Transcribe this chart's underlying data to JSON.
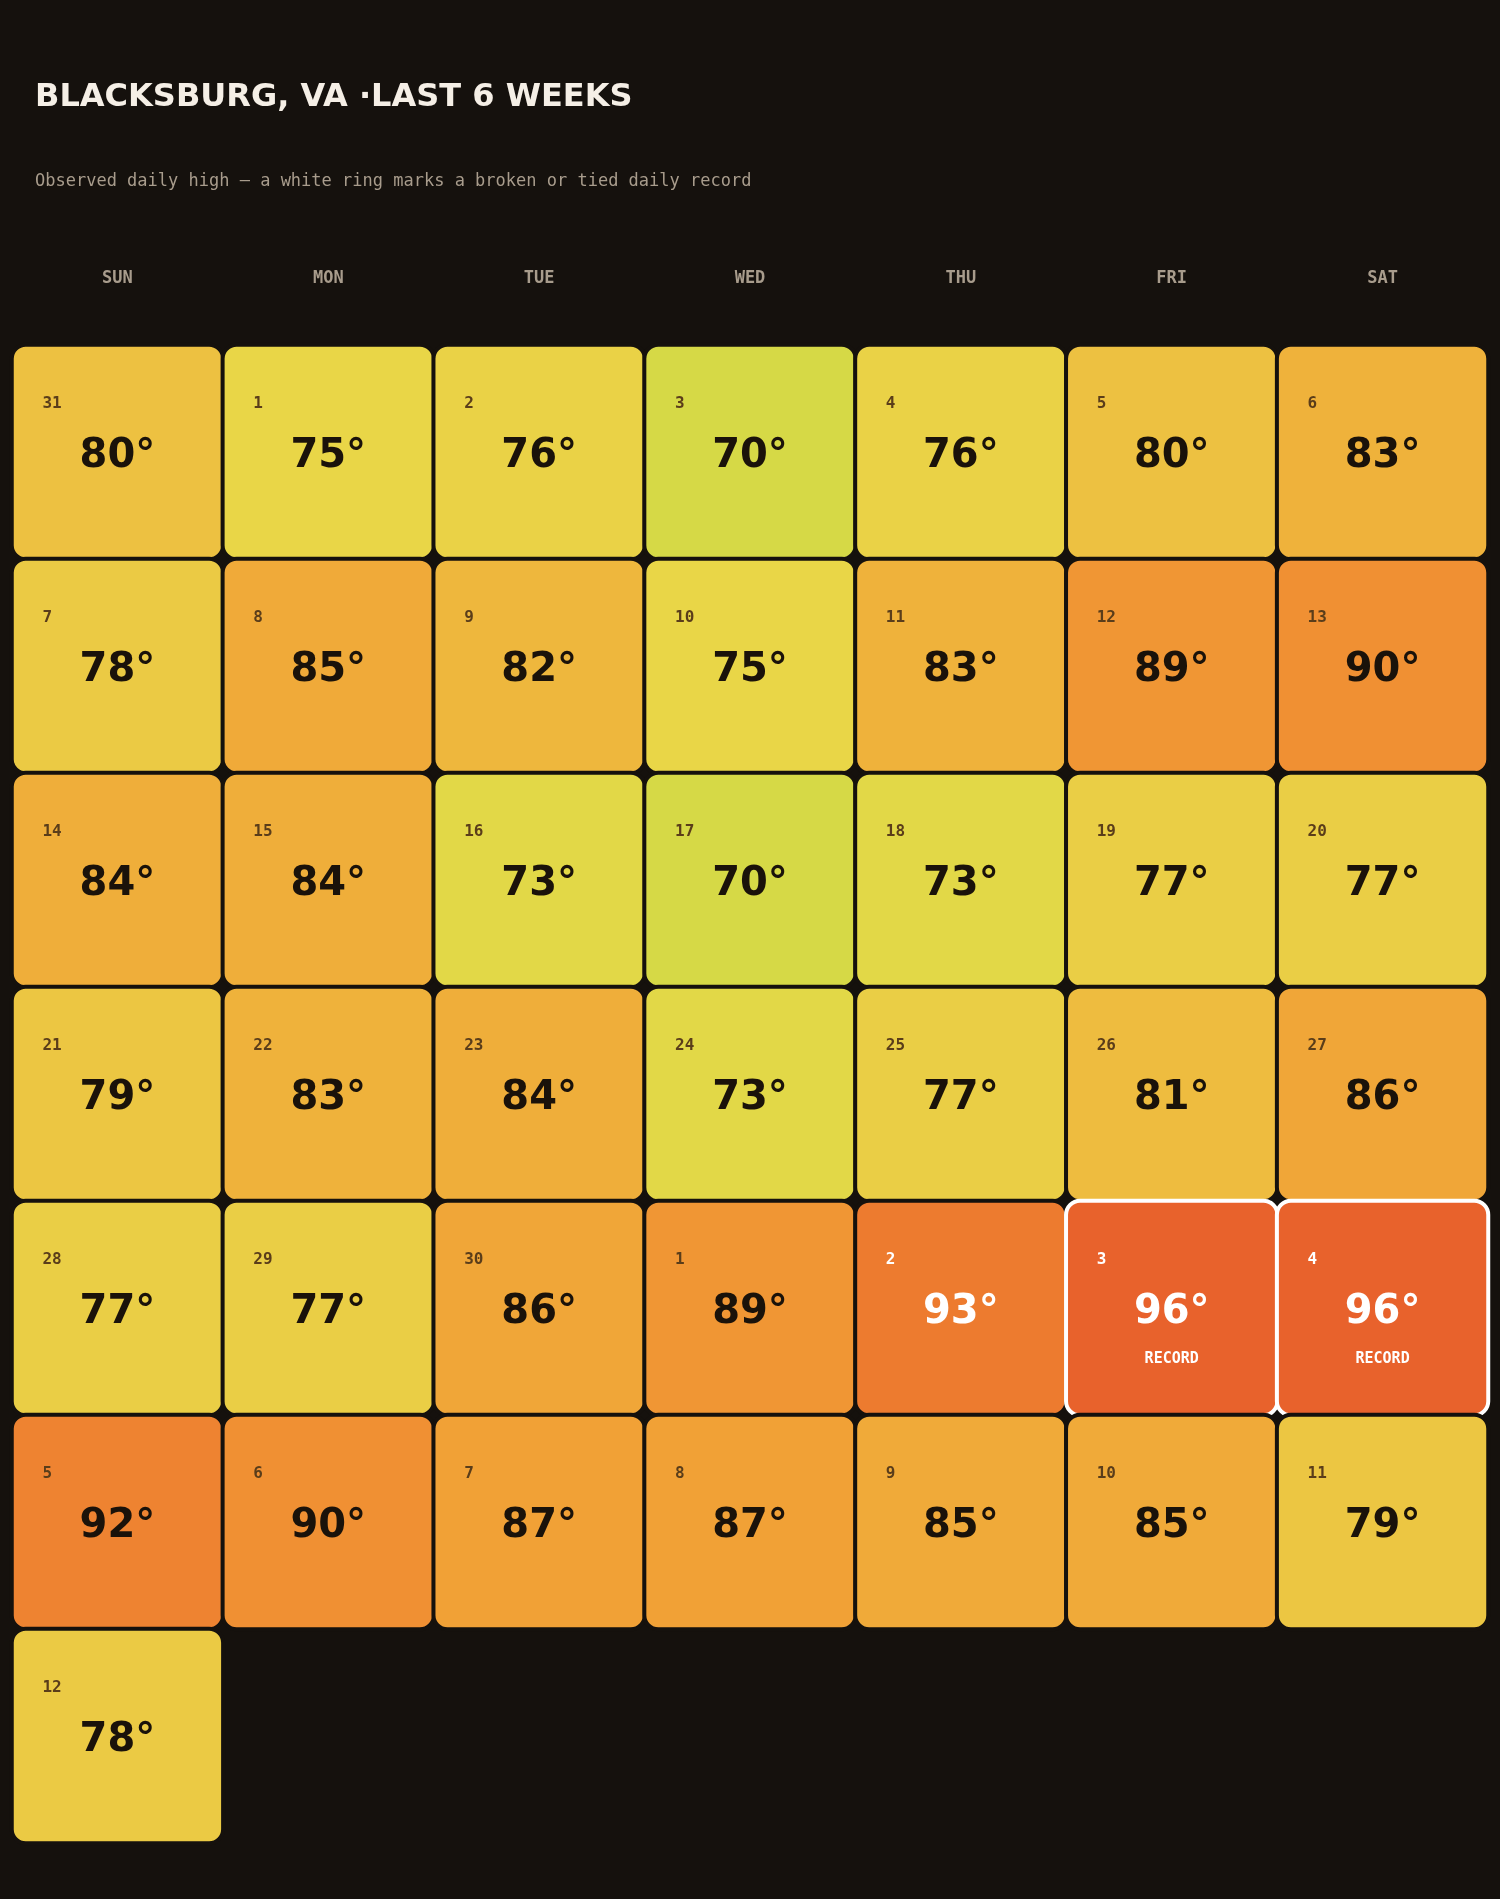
{
  "chart_data": {
    "type": "heatmap",
    "title": "BLACKSBURG, VA ·LAST 6 WEEKS",
    "subtitle": "Observed daily high — a white ring marks a broken or tied daily record",
    "categories": [
      "SUN",
      "MON",
      "TUE",
      "WED",
      "THU",
      "FRI",
      "SAT"
    ],
    "y_categories": [
      null,
      null,
      null,
      null,
      null,
      null,
      null
    ],
    "cells": [
      [
        80,
        75,
        76,
        70,
        76,
        80,
        83
      ],
      [
        78,
        85,
        82,
        75,
        83,
        89,
        90
      ],
      [
        84,
        84,
        73,
        70,
        73,
        77,
        77
      ],
      [
        79,
        83,
        84,
        73,
        77,
        81,
        86
      ],
      [
        77,
        77,
        86,
        89,
        93,
        96,
        96
      ],
      [
        92,
        90,
        87,
        87,
        85,
        85,
        79
      ],
      [
        78,
        null,
        null,
        null,
        null,
        null,
        null
      ]
    ],
    "cell_labels": [
      [
        "80°",
        "75°",
        "76°",
        "70°",
        "76°",
        "80°",
        "83°"
      ],
      [
        "78°",
        "85°",
        "82°",
        "75°",
        "83°",
        "89°",
        "90°"
      ],
      [
        "84°",
        "84°",
        "73°",
        "70°",
        "73°",
        "77°",
        "77°"
      ],
      [
        "79°",
        "83°",
        "84°",
        "73°",
        "77°",
        "81°",
        "86°"
      ],
      [
        "77°",
        "77°",
        "86°",
        "89°",
        "93°",
        "96°\nRECORD",
        "96°\nRECORD"
      ],
      [
        "92°",
        "90°",
        "87°",
        "87°",
        "85°",
        "85°",
        "79°"
      ],
      [
        "78°",
        null,
        null,
        null,
        null,
        null,
        null
      ]
    ],
    "annotations": [
      "31",
      "1",
      "2",
      "3",
      "4",
      "5",
      "6",
      "7",
      "8",
      "9",
      "10",
      "11",
      "12",
      "13",
      "14",
      "15",
      "16",
      "17",
      "18",
      "19",
      "20",
      "21",
      "22",
      "23",
      "24",
      "25",
      "26",
      "27",
      "28",
      "29",
      "30",
      "1",
      "2",
      "3",
      "4",
      "5",
      "6",
      "7",
      "8",
      "9",
      "10",
      "11",
      "12"
    ]
  }
}
